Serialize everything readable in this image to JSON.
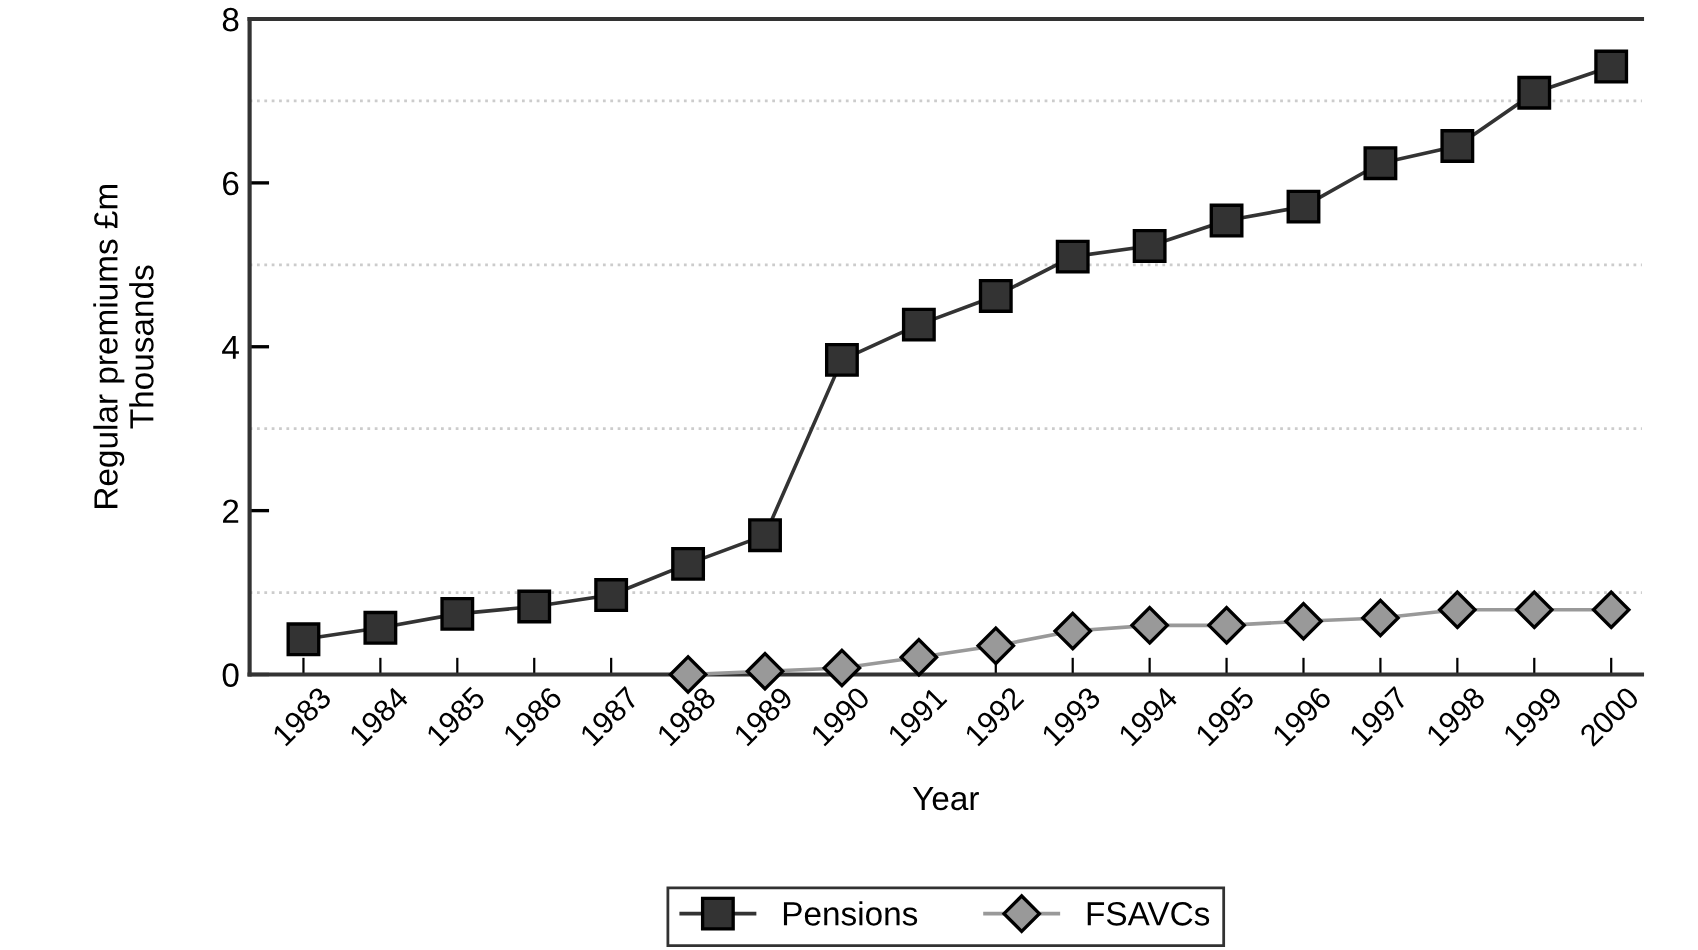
{
  "chart_data": {
    "type": "line",
    "xlabel": "Year",
    "ylabel": "Regular premiums £m\nThousands",
    "categories": [
      "1983",
      "1984",
      "1985",
      "1986",
      "1987",
      "1988",
      "1989",
      "1990",
      "1991",
      "1992",
      "1993",
      "1994",
      "1995",
      "1996",
      "1997",
      "1998",
      "1999",
      "2000"
    ],
    "series": [
      {
        "name": "Pensions",
        "color": "#333333",
        "marker": "square",
        "values": [
          0.43,
          0.57,
          0.74,
          0.83,
          0.97,
          1.35,
          1.7,
          3.84,
          4.27,
          4.62,
          5.1,
          5.23,
          5.54,
          5.71,
          6.24,
          6.45,
          7.1,
          7.42
        ]
      },
      {
        "name": "FSAVCs",
        "color": "#999999",
        "marker": "diamond",
        "values": [
          null,
          null,
          null,
          null,
          null,
          0,
          0.04,
          0.08,
          0.21,
          0.35,
          0.53,
          0.6,
          0.6,
          0.65,
          0.69,
          0.79,
          0.79,
          0.79
        ]
      }
    ],
    "ylim": [
      0,
      8
    ],
    "yticks": [
      0,
      {
        "value": 1,
        "label": null
      },
      2,
      {
        "value": 3,
        "label": null
      },
      4,
      {
        "value": 5,
        "label": null
      },
      6,
      {
        "value": 7,
        "label": null
      },
      8
    ],
    "grid": "y",
    "legend": "bottom",
    "line_style": "solid"
  }
}
